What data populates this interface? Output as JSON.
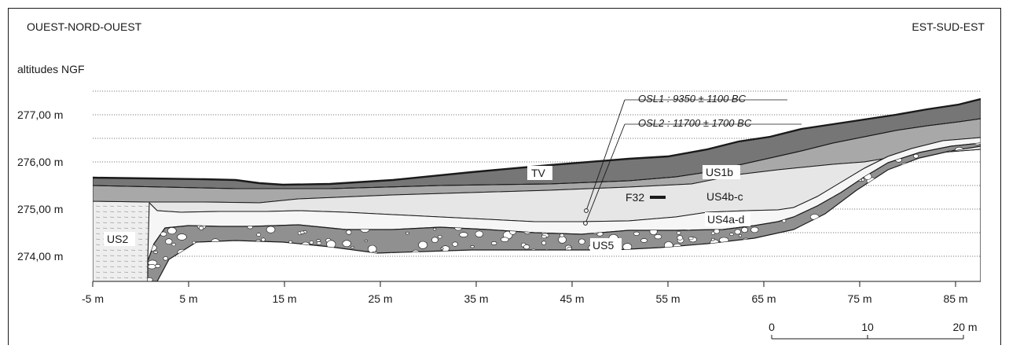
{
  "orientation": {
    "left": "OUEST-NORD-OUEST",
    "right": "EST-SUD-EST"
  },
  "altitude_header": "altitudes NGF",
  "y_axis": {
    "ticks": [
      {
        "value": 277,
        "label": "277,00 m"
      },
      {
        "value": 276,
        "label": "276,00 m"
      },
      {
        "value": 275,
        "label": "275,00 m"
      },
      {
        "value": 274,
        "label": "274,00 m"
      }
    ]
  },
  "x_axis": {
    "ticks": [
      {
        "value": -5,
        "label": "-5 m"
      },
      {
        "value": 5,
        "label": "5 m"
      },
      {
        "value": 15,
        "label": "15 m"
      },
      {
        "value": 25,
        "label": "25 m"
      },
      {
        "value": 35,
        "label": "35 m"
      },
      {
        "value": 45,
        "label": "45 m"
      },
      {
        "value": 55,
        "label": "55 m"
      },
      {
        "value": 65,
        "label": "65 m"
      },
      {
        "value": 75,
        "label": "75 m"
      },
      {
        "value": 85,
        "label": "85 m"
      }
    ]
  },
  "layers": {
    "tv": "TV",
    "us1b": "US1b",
    "us4bc": "US4b-c",
    "us4ad": "US4a-d",
    "us5": "US5",
    "us2": "US2",
    "f32": "F32"
  },
  "samples": [
    {
      "label": "OSL1 : 9350 ± 1100 BC"
    },
    {
      "label": "OSL2 : 11700 ± 1700 BC"
    }
  ],
  "scale_bar": {
    "labels": [
      "0",
      "10",
      "20 m"
    ]
  },
  "colors": {
    "topsoil": "#767676",
    "us1b": "#a8a8a8",
    "us4bc": "#e6e6e6",
    "us4ad": "#f6f6f6",
    "us5": "#909090",
    "us2": "#eeeeee",
    "pebble_fill": "#ffffff",
    "line": "#1a1a1a"
  }
}
